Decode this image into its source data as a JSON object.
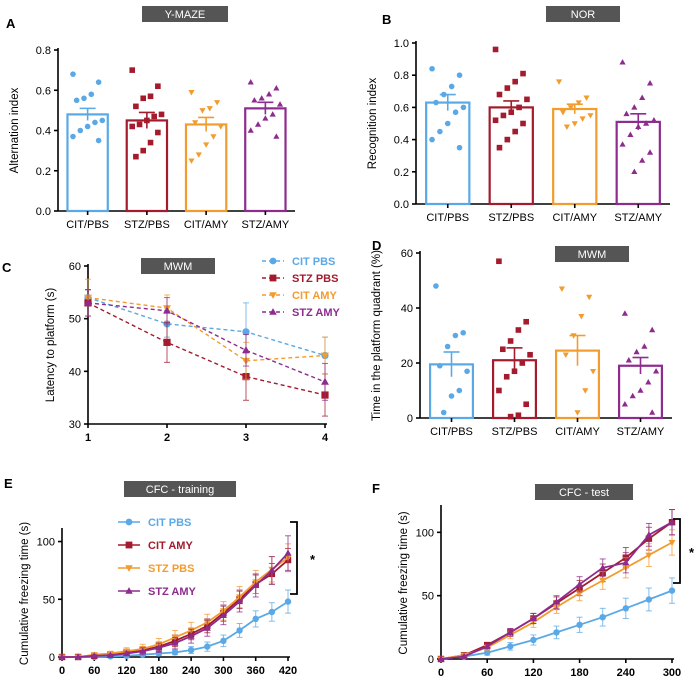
{
  "colors": {
    "cit_pbs": "#5aa9e6",
    "stz_pbs": "#a31b2c",
    "cit_amy": "#f39c2e",
    "stz_amy": "#8e2b8e",
    "title_box": "#555555"
  },
  "chart_data": [
    {
      "id": "A",
      "letter": "A",
      "type": "bar",
      "title": "Y-MAZE",
      "ylabel": "Alternation index",
      "ylim": [
        0,
        0.8
      ],
      "yticks": [
        0.0,
        0.2,
        0.4,
        0.6,
        0.8
      ],
      "ytick_labels": [
        "0.0",
        "0.2",
        "0.4",
        "0.6",
        "0.8"
      ],
      "categories": [
        "CIT/PBS",
        "STZ/PBS",
        "CIT/AMY",
        "STZ/AMY"
      ],
      "color_keys": [
        "cit_pbs",
        "stz_pbs",
        "cit_amy",
        "stz_amy"
      ],
      "markers": [
        "circle",
        "square",
        "triangle-down",
        "triangle"
      ],
      "means": [
        0.48,
        0.45,
        0.43,
        0.51
      ],
      "sem": [
        0.03,
        0.04,
        0.035,
        0.03
      ],
      "points": [
        [
          0.68,
          0.64,
          0.58,
          0.56,
          0.55,
          0.45,
          0.44,
          0.42,
          0.4,
          0.37,
          0.35
        ],
        [
          0.7,
          0.62,
          0.57,
          0.56,
          0.52,
          0.48,
          0.47,
          0.45,
          0.43,
          0.42,
          0.39,
          0.34,
          0.3,
          0.27
        ],
        [
          0.59,
          0.54,
          0.51,
          0.5,
          0.44,
          0.42,
          0.37,
          0.33,
          0.28,
          0.25
        ],
        [
          0.64,
          0.61,
          0.58,
          0.56,
          0.55,
          0.53,
          0.48,
          0.46,
          0.43,
          0.4,
          0.37
        ]
      ]
    },
    {
      "id": "B",
      "letter": "B",
      "type": "bar",
      "title": "NOR",
      "ylabel": "Recognition index",
      "ylim": [
        0,
        1.0
      ],
      "yticks": [
        0.0,
        0.2,
        0.4,
        0.6,
        0.8,
        1.0
      ],
      "ytick_labels": [
        "0.0",
        "0.2",
        "0.4",
        "0.6",
        "0.8",
        "1.0"
      ],
      "categories": [
        "CIT/PBS",
        "STZ/PBS",
        "CIT/AMY",
        "STZ/AMY"
      ],
      "color_keys": [
        "cit_pbs",
        "stz_pbs",
        "cit_amy",
        "stz_amy"
      ],
      "markers": [
        "circle",
        "square",
        "triangle-down",
        "triangle"
      ],
      "means": [
        0.63,
        0.6,
        0.59,
        0.51
      ],
      "sem": [
        0.05,
        0.04,
        0.03,
        0.05
      ],
      "points": [
        [
          0.84,
          0.8,
          0.73,
          0.68,
          0.63,
          0.6,
          0.57,
          0.5,
          0.45,
          0.4,
          0.35
        ],
        [
          0.96,
          0.81,
          0.76,
          0.72,
          0.68,
          0.65,
          0.6,
          0.57,
          0.55,
          0.52,
          0.5,
          0.45,
          0.4,
          0.35
        ],
        [
          0.76,
          0.66,
          0.63,
          0.6,
          0.57,
          0.55,
          0.53,
          0.5,
          0.48
        ],
        [
          0.88,
          0.75,
          0.66,
          0.6,
          0.56,
          0.52,
          0.5,
          0.48,
          0.43,
          0.37,
          0.32,
          0.27,
          0.2
        ]
      ]
    },
    {
      "id": "C",
      "letter": "C",
      "type": "line",
      "title": "MWM",
      "ylabel": "Latency to platform (s)",
      "xlim": [
        1,
        4
      ],
      "xticks": [
        1,
        2,
        3,
        4
      ],
      "ylim": [
        30,
        60
      ],
      "yticks": [
        30,
        40,
        50,
        60
      ],
      "dashed": true,
      "series": [
        {
          "name": "CIT PBS",
          "color_key": "cit_pbs",
          "marker": "circle",
          "x": [
            1,
            2,
            3,
            4
          ],
          "y": [
            54,
            49,
            47.5,
            43
          ],
          "err": [
            1.5,
            2.5,
            5.5,
            3.5
          ]
        },
        {
          "name": "STZ PBS",
          "color_key": "stz_pbs",
          "marker": "square",
          "x": [
            1,
            2,
            3,
            4
          ],
          "y": [
            53,
            45.5,
            39,
            35.5
          ],
          "err": [
            2.5,
            3.8,
            4.5,
            4.0
          ]
        },
        {
          "name": "CIT AMY",
          "color_key": "cit_amy",
          "marker": "triangle-down",
          "x": [
            1,
            2,
            3,
            4
          ],
          "y": [
            54,
            52,
            42,
            43
          ],
          "err": [
            3.5,
            2.5,
            3.5,
            3.5
          ]
        },
        {
          "name": "STZ AMY",
          "color_key": "stz_amy",
          "marker": "triangle",
          "x": [
            1,
            2,
            3,
            4
          ],
          "y": [
            53,
            51.5,
            44,
            38
          ],
          "err": [
            2.5,
            2.5,
            3.0,
            3.5
          ]
        }
      ],
      "legend_position": "top-right"
    },
    {
      "id": "D",
      "letter": "D",
      "type": "bar",
      "title": "MWM",
      "ylabel": "Time in the platform quadrant (%)",
      "ylim": [
        0,
        60
      ],
      "yticks": [
        0,
        20,
        40,
        60
      ],
      "ytick_labels": [
        "0",
        "20",
        "40",
        "60"
      ],
      "categories": [
        "CIT/PBS",
        "STZ/PBS",
        "CIT/AMY",
        "STZ/AMY"
      ],
      "color_keys": [
        "cit_pbs",
        "stz_pbs",
        "cit_amy",
        "stz_amy"
      ],
      "markers": [
        "circle",
        "square",
        "triangle-down",
        "triangle"
      ],
      "means": [
        19.5,
        21,
        24.5,
        19
      ],
      "sem": [
        4.5,
        4.5,
        5.5,
        3
      ],
      "points": [
        [
          48,
          31,
          30,
          26,
          19,
          17,
          10,
          8,
          2
        ],
        [
          57,
          35,
          32,
          28,
          25,
          23,
          20,
          17,
          15,
          10,
          5,
          1,
          0.5
        ],
        [
          47,
          44,
          37,
          30,
          23,
          17,
          10,
          2
        ],
        [
          38,
          32,
          26,
          24,
          21,
          17,
          13,
          10,
          8,
          5,
          2
        ]
      ]
    },
    {
      "id": "E",
      "letter": "E",
      "type": "line",
      "title": "CFC - training",
      "ylabel": "Cumulative freezing time (s)",
      "xlim": [
        0,
        420
      ],
      "xticks": [
        0,
        60,
        120,
        180,
        240,
        300,
        360,
        420
      ],
      "ylim": [
        0,
        110
      ],
      "yticks": [
        0,
        50,
        100
      ],
      "dashed": false,
      "significance": "*",
      "series": [
        {
          "name": "CIT PBS",
          "color_key": "cit_pbs",
          "marker": "circle",
          "x": [
            0,
            30,
            60,
            90,
            120,
            150,
            180,
            210,
            240,
            270,
            300,
            330,
            360,
            390,
            420
          ],
          "y": [
            0,
            0,
            0,
            0.5,
            1,
            2,
            3,
            4,
            6,
            9,
            14,
            23,
            33,
            39,
            48
          ],
          "err": [
            0,
            0,
            0,
            0.5,
            1,
            1,
            2,
            2,
            3,
            4,
            5,
            6,
            7,
            8,
            10
          ]
        },
        {
          "name": "CIT AMY",
          "color_key": "stz_pbs",
          "marker": "square",
          "x": [
            0,
            30,
            60,
            90,
            120,
            150,
            180,
            210,
            240,
            270,
            300,
            330,
            360,
            390,
            420
          ],
          "y": [
            0,
            0,
            1,
            2,
            4,
            6,
            9,
            14,
            20,
            27,
            38,
            50,
            63,
            72,
            84
          ],
          "err": [
            0,
            0,
            1,
            1,
            2,
            3,
            4,
            5,
            5,
            6,
            7,
            8,
            8,
            9,
            10
          ]
        },
        {
          "name": "STZ PBS",
          "color_key": "cit_amy",
          "marker": "triangle-down",
          "x": [
            0,
            30,
            60,
            90,
            120,
            150,
            180,
            210,
            240,
            270,
            300,
            330,
            360,
            390,
            420
          ],
          "y": [
            0,
            0,
            2,
            3,
            5,
            7,
            11,
            17,
            23,
            30,
            40,
            52,
            65,
            76,
            86
          ],
          "err": [
            0,
            1,
            1,
            2,
            3,
            4,
            5,
            6,
            7,
            7,
            8,
            9,
            10,
            11,
            12
          ]
        },
        {
          "name": "STZ AMY",
          "color_key": "stz_amy",
          "marker": "triangle",
          "x": [
            0,
            30,
            60,
            90,
            120,
            150,
            180,
            210,
            240,
            270,
            300,
            330,
            360,
            390,
            420
          ],
          "y": [
            0,
            0,
            1,
            1.5,
            3,
            5,
            8,
            12,
            18,
            25,
            36,
            48,
            62,
            75,
            90
          ],
          "err": [
            0,
            0,
            1,
            1,
            2,
            3,
            4,
            5,
            6,
            7,
            8,
            9,
            10,
            12,
            15
          ]
        }
      ],
      "legend_position": "top-left"
    },
    {
      "id": "F",
      "letter": "F",
      "type": "line",
      "title": "CFC - test",
      "ylabel": "Cumulative freezing time (s)",
      "xlim": [
        0,
        300
      ],
      "xticks": [
        0,
        60,
        120,
        180,
        240,
        300
      ],
      "ylim": [
        0,
        120
      ],
      "yticks": [
        0,
        50,
        100
      ],
      "dashed": false,
      "significance": "*",
      "series": [
        {
          "name": "CIT PBS",
          "color_key": "cit_pbs",
          "marker": "circle",
          "x": [
            0,
            30,
            60,
            90,
            120,
            150,
            180,
            210,
            240,
            270,
            300
          ],
          "y": [
            0,
            2,
            5,
            10,
            15,
            21,
            27,
            33,
            40,
            47,
            54
          ],
          "err": [
            0,
            1,
            2,
            3,
            4,
            5,
            6,
            7,
            8,
            9,
            10
          ]
        },
        {
          "name": "CIT AMY",
          "color_key": "stz_pbs",
          "marker": "square",
          "x": [
            0,
            30,
            60,
            90,
            120,
            150,
            180,
            210,
            240,
            270,
            300
          ],
          "y": [
            0,
            3,
            11,
            21,
            32,
            44,
            56,
            68,
            80,
            95,
            108
          ],
          "err": [
            0,
            1,
            2,
            3,
            4,
            5,
            6,
            7,
            8,
            9,
            10
          ]
        },
        {
          "name": "STZ PBS",
          "color_key": "cit_amy",
          "marker": "triangle-down",
          "x": [
            0,
            30,
            60,
            90,
            120,
            150,
            180,
            210,
            240,
            270,
            300
          ],
          "y": [
            0,
            3,
            9,
            19,
            29,
            41,
            52,
            62,
            72,
            82,
            92
          ],
          "err": [
            0,
            1,
            2,
            3,
            4,
            5,
            6,
            7,
            8,
            9,
            10
          ]
        },
        {
          "name": "STZ AMY",
          "color_key": "stz_amy",
          "marker": "triangle",
          "x": [
            0,
            30,
            60,
            90,
            120,
            150,
            180,
            210,
            240,
            270,
            300
          ],
          "y": [
            0,
            2,
            10,
            21,
            32,
            45,
            59,
            72,
            76,
            98,
            108
          ],
          "err": [
            0,
            1,
            2,
            3,
            4,
            5,
            6,
            7,
            8,
            9,
            10
          ]
        }
      ]
    }
  ]
}
